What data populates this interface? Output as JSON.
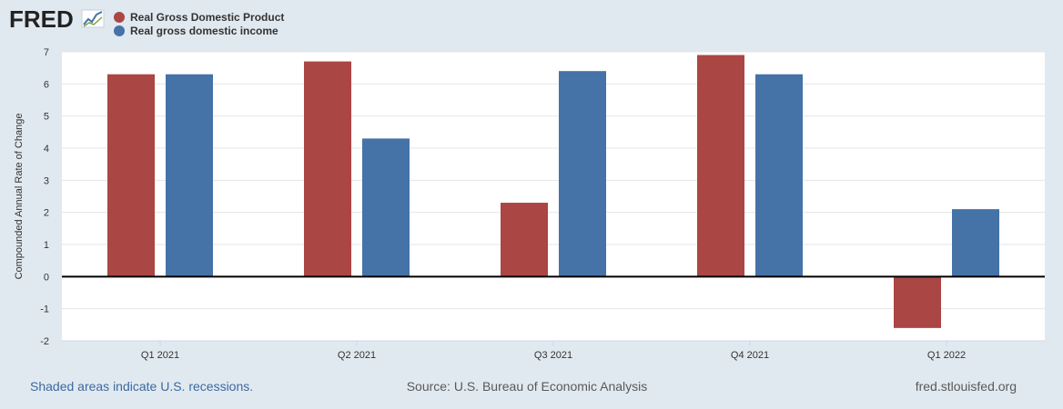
{
  "branding": {
    "logo_text": "FRED"
  },
  "colors": {
    "gdp": "#aa4643",
    "gdi": "#4572a7",
    "background": "#e1e9f0",
    "plot_background": "#ffffff",
    "gridline": "#e6e6e6",
    "zero_line": "#000000",
    "note_link": "#3b6aa0",
    "footer_text": "#595959",
    "logo": "#222222"
  },
  "chart_data": {
    "type": "bar",
    "title": "",
    "xlabel": "",
    "ylabel": "Compounded Annual Rate of Change",
    "ylim": [
      -2,
      7
    ],
    "yticks": [
      -2,
      -1,
      0,
      1,
      2,
      3,
      4,
      5,
      6,
      7
    ],
    "ytick_labels": [
      "-2",
      "-1",
      "0",
      "1",
      "2",
      "3",
      "4",
      "5",
      "6",
      "7"
    ],
    "categories": [
      "Q1 2021",
      "Q2 2021",
      "Q3 2021",
      "Q4 2021",
      "Q1 2022"
    ],
    "series": [
      {
        "name": "Real Gross Domestic Product",
        "color": "#aa4643",
        "values": [
          6.3,
          6.7,
          2.3,
          6.9,
          -1.6
        ]
      },
      {
        "name": "Real gross domestic income",
        "color": "#4572a7",
        "values": [
          6.3,
          4.3,
          6.4,
          6.3,
          2.1
        ]
      }
    ],
    "grid": true,
    "legend_position": "top-left"
  },
  "footer": {
    "note": "Shaded areas indicate U.S. recessions.",
    "source": "Source: U.S. Bureau of Economic Analysis",
    "site": "fred.stlouisfed.org"
  }
}
